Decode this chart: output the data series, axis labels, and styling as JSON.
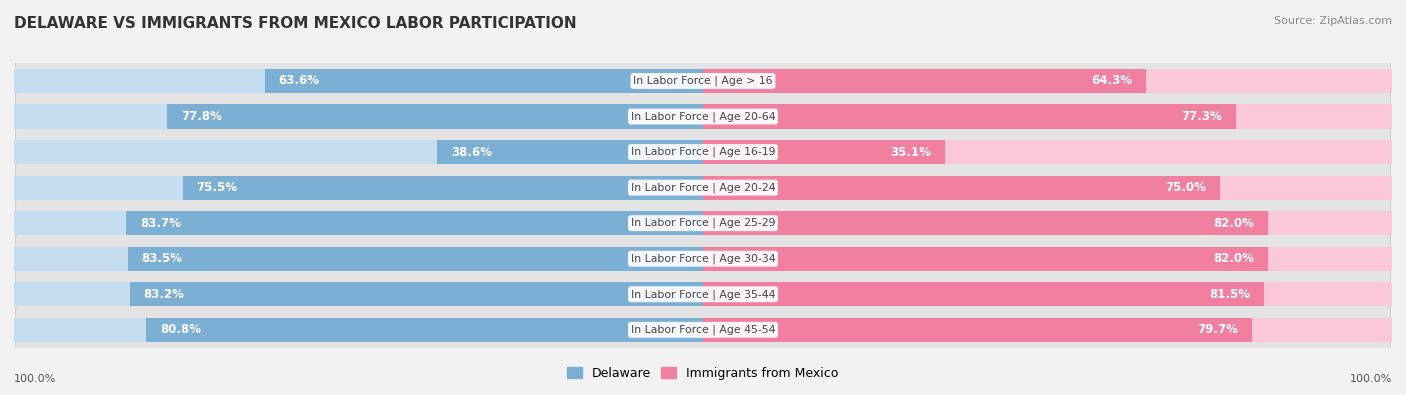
{
  "title": "DELAWARE VS IMMIGRANTS FROM MEXICO LABOR PARTICIPATION",
  "source": "Source: ZipAtlas.com",
  "categories": [
    "In Labor Force | Age > 16",
    "In Labor Force | Age 20-64",
    "In Labor Force | Age 16-19",
    "In Labor Force | Age 20-24",
    "In Labor Force | Age 25-29",
    "In Labor Force | Age 30-34",
    "In Labor Force | Age 35-44",
    "In Labor Force | Age 45-54"
  ],
  "delaware_values": [
    63.6,
    77.8,
    38.6,
    75.5,
    83.7,
    83.5,
    83.2,
    80.8
  ],
  "mexico_values": [
    64.3,
    77.3,
    35.1,
    75.0,
    82.0,
    82.0,
    81.5,
    79.7
  ],
  "max_value": 100.0,
  "delaware_color": "#7BAFD4",
  "delaware_color_light": "#C5DDF0",
  "mexico_color": "#F07FA0",
  "mexico_color_light": "#FAC8D8",
  "bg_color": "#F2F2F2",
  "row_bg_color": "#E4E4E4",
  "title_color": "#333333",
  "source_color": "#888888",
  "value_color_white": "#FFFFFF",
  "value_color_dark": "#555555",
  "legend_delaware": "Delaware",
  "legend_mexico": "Immigrants from Mexico",
  "bottom_label": "100.0%",
  "title_fontsize": 11,
  "value_fontsize": 8.5,
  "category_fontsize": 7.8,
  "legend_fontsize": 9
}
